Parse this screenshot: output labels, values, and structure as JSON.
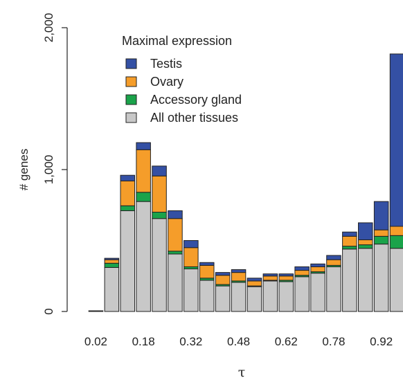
{
  "chart_data": {
    "type": "bar",
    "stacked": true,
    "xlabel": "τ",
    "ylabel": "# genes",
    "ylim": [
      0,
      2000
    ],
    "yticks": [
      0,
      1000,
      2000
    ],
    "ytick_labels": [
      "0",
      "1,000",
      "2,000"
    ],
    "x_tick_labels": [
      "0.02",
      "0.18",
      "0.32",
      "0.48",
      "0.62",
      "0.78",
      "0.92"
    ],
    "x_tick_bins": [
      0,
      3,
      6,
      9,
      12,
      15,
      18
    ],
    "legend": {
      "title": "Maximal expression",
      "position": "top-left"
    },
    "series": [
      {
        "name": "All other tissues",
        "color": "#c8c8c8",
        "values": [
          5,
          310,
          710,
          775,
          655,
          405,
          300,
          220,
          180,
          205,
          175,
          215,
          210,
          245,
          270,
          315,
          440,
          445,
          475,
          445
        ]
      },
      {
        "name": "Accessory gland",
        "color": "#1aa34a",
        "values": [
          0,
          30,
          35,
          65,
          45,
          20,
          15,
          15,
          10,
          10,
          5,
          5,
          10,
          10,
          10,
          10,
          20,
          25,
          55,
          90
        ]
      },
      {
        "name": "Ovary",
        "color": "#f59d2a",
        "values": [
          0,
          25,
          175,
          300,
          255,
          230,
          135,
          90,
          65,
          60,
          35,
          30,
          30,
          35,
          35,
          40,
          70,
          35,
          45,
          65
        ]
      },
      {
        "name": "Testis",
        "color": "#3450a4",
        "values": [
          0,
          10,
          40,
          50,
          70,
          55,
          50,
          20,
          20,
          20,
          20,
          15,
          15,
          25,
          20,
          30,
          30,
          120,
          200,
          1215
        ]
      }
    ]
  }
}
